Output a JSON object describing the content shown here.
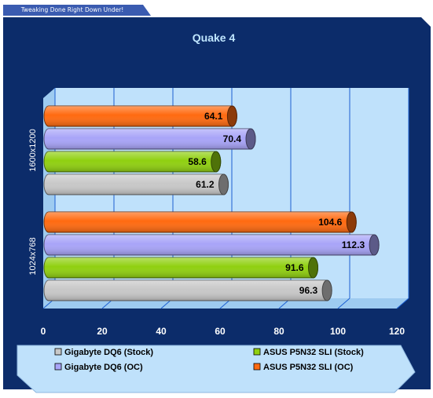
{
  "header": {
    "tagline": "Tweaking Done Right Down Under!"
  },
  "colors": {
    "background": "#0c2c6a",
    "plot_wall": "#bfe1fb",
    "legend_bg": "#bfe1fb",
    "grid": "#1c5fd2"
  },
  "chart_data": {
    "type": "bar",
    "orientation": "horizontal",
    "title": "Quake 4",
    "categories": [
      "1600x1200",
      "1024x768"
    ],
    "series": [
      {
        "name": "Gigabyte DQ6 (Stock)",
        "color": "#c8c8c8",
        "values": [
          61.2,
          96.3
        ]
      },
      {
        "name": "ASUS P5N32 SLI (Stock)",
        "color": "#90d010",
        "values": [
          58.6,
          91.6
        ]
      },
      {
        "name": "Gigabyte DQ6 (OC)",
        "color": "#a8a4f8",
        "values": [
          70.4,
          112.3
        ]
      },
      {
        "name": "ASUS P5N32 SLI (OC)",
        "color": "#ff6a10",
        "values": [
          64.1,
          104.6
        ]
      }
    ],
    "xlim": [
      0,
      120
    ],
    "xticks": [
      "0",
      "20",
      "40",
      "60",
      "80",
      "100",
      "120"
    ],
    "grid": true,
    "legend_position": "bottom"
  }
}
